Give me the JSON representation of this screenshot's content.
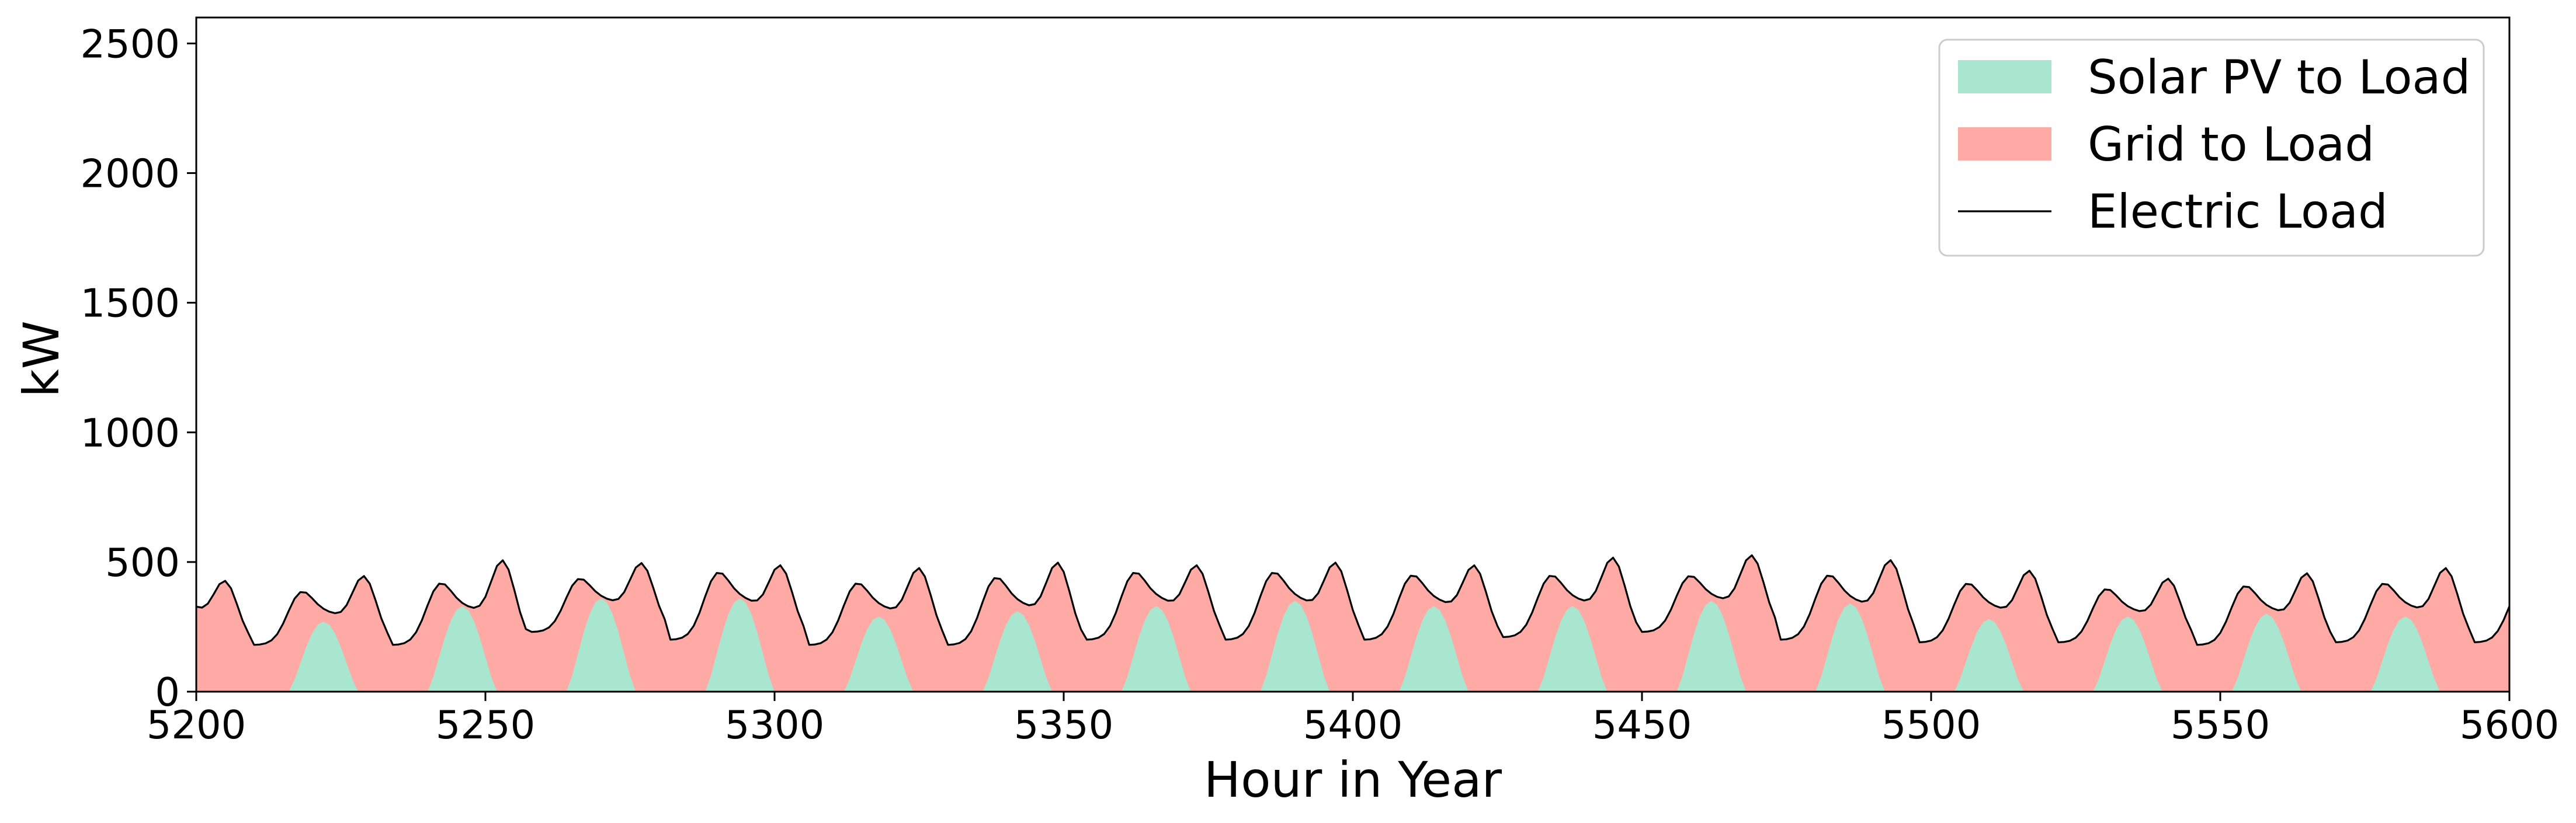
{
  "chart_data": {
    "type": "area",
    "title": "",
    "xlabel": "Hour in Year",
    "ylabel": "kW",
    "xlim": [
      5200,
      5600
    ],
    "ylim": [
      0,
      2600
    ],
    "x_ticks": [
      "5200",
      "5250",
      "5300",
      "5350",
      "5400",
      "5450",
      "5500",
      "5550",
      "5600"
    ],
    "y_ticks": [
      "0",
      "500",
      "1000",
      "1500",
      "2000",
      "2500"
    ],
    "legend_position": "top-right",
    "series": [
      {
        "name": "Solar PV to Load",
        "kind": "stacked-area",
        "color": "#a8e6cf"
      },
      {
        "name": "Grid to Load",
        "kind": "stacked-area",
        "color": "#ffaaa5"
      },
      {
        "name": "Electric Load",
        "kind": "line",
        "color": "#000000"
      }
    ],
    "profile": {
      "hour_start": 5200,
      "hour_end": 5600,
      "daily_load_peaks": [
        {
          "day_start": 5200,
          "load_min": 180,
          "morning_peak": 420,
          "evening_peak": 420,
          "pv_peak": 0
        },
        {
          "day_start": 5210,
          "load_min": 180,
          "morning_peak": 370,
          "evening_peak": 440,
          "pv_peak": 270
        },
        {
          "day_start": 5234,
          "load_min": 180,
          "morning_peak": 400,
          "evening_peak": 500,
          "pv_peak": 330
        },
        {
          "day_start": 5258,
          "load_min": 230,
          "morning_peak": 420,
          "evening_peak": 490,
          "pv_peak": 360
        },
        {
          "day_start": 5282,
          "load_min": 200,
          "morning_peak": 440,
          "evening_peak": 480,
          "pv_peak": 360
        },
        {
          "day_start": 5306,
          "load_min": 180,
          "morning_peak": 400,
          "evening_peak": 470,
          "pv_peak": 290
        },
        {
          "day_start": 5330,
          "load_min": 180,
          "morning_peak": 420,
          "evening_peak": 490,
          "pv_peak": 310
        },
        {
          "day_start": 5354,
          "load_min": 200,
          "morning_peak": 440,
          "evening_peak": 480,
          "pv_peak": 330
        },
        {
          "day_start": 5378,
          "load_min": 200,
          "morning_peak": 440,
          "evening_peak": 490,
          "pv_peak": 350
        },
        {
          "day_start": 5402,
          "load_min": 200,
          "morning_peak": 430,
          "evening_peak": 480,
          "pv_peak": 330
        },
        {
          "day_start": 5426,
          "load_min": 210,
          "morning_peak": 430,
          "evening_peak": 510,
          "pv_peak": 330
        },
        {
          "day_start": 5450,
          "load_min": 230,
          "morning_peak": 430,
          "evening_peak": 520,
          "pv_peak": 350
        },
        {
          "day_start": 5474,
          "load_min": 200,
          "morning_peak": 430,
          "evening_peak": 500,
          "pv_peak": 340
        },
        {
          "day_start": 5498,
          "load_min": 190,
          "morning_peak": 400,
          "evening_peak": 460,
          "pv_peak": 280
        },
        {
          "day_start": 5522,
          "load_min": 190,
          "morning_peak": 380,
          "evening_peak": 430,
          "pv_peak": 290
        },
        {
          "day_start": 5546,
          "load_min": 180,
          "morning_peak": 390,
          "evening_peak": 450,
          "pv_peak": 300
        },
        {
          "day_start": 5570,
          "load_min": 190,
          "morning_peak": 400,
          "evening_peak": 470,
          "pv_peak": 290
        },
        {
          "day_start": 5594,
          "load_min": 190,
          "morning_peak": 390,
          "evening_peak": 390,
          "pv_peak": 0
        }
      ]
    }
  }
}
